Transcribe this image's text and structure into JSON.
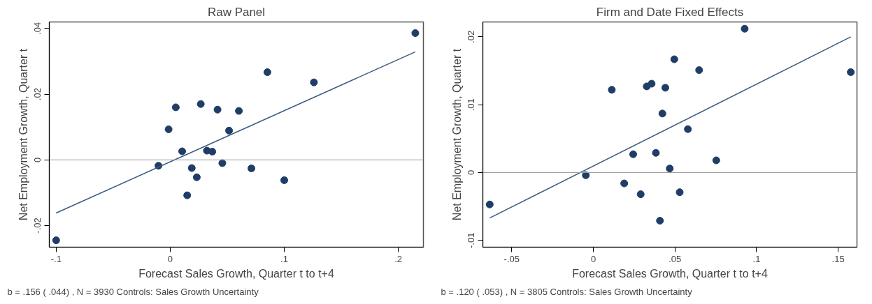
{
  "chart_data": [
    {
      "type": "scatter",
      "title": "Raw Panel",
      "xlabel": "Forecast Sales Growth, Quarter t to t+4",
      "ylabel": "Net Employment Growth, Quarter t",
      "annotations": [
        "b = .156 ( .044) , N = 3930  Controls: Sales Growth Uncertainty"
      ],
      "xlim": [
        -0.106,
        0.222
      ],
      "ylim": [
        -0.0266,
        0.042
      ],
      "xticks": [
        {
          "value": -0.1,
          "label": "-.1"
        },
        0,
        {
          "value": 0.1,
          "label": ".1"
        },
        {
          "value": 0.2,
          "label": ".2"
        }
      ],
      "yticks": [
        {
          "value": -0.02,
          "label": "-.02"
        },
        0,
        {
          "value": 0.02,
          "label": ".02"
        },
        {
          "value": 0.04,
          "label": ".04"
        }
      ],
      "grid": false,
      "ref_lines": [
        {
          "axis": "y",
          "value": 0,
          "label": null,
          "color": "#a0a0a0"
        }
      ],
      "series": [
        {
          "marker": "circle",
          "color": "#1f3d66",
          "x": [
            -0.1,
            -0.0103,
            -0.0014,
            0.0049,
            0.0105,
            0.0149,
            0.0189,
            0.0233,
            0.0268,
            0.0322,
            0.0369,
            0.0415,
            0.0457,
            0.0516,
            0.0602,
            0.0712,
            0.0852,
            0.1,
            0.126,
            0.2149
          ],
          "values": [
            -0.0245,
            -0.0018,
            0.0093,
            0.016,
            0.0026,
            -0.0108,
            -0.0025,
            -0.0053,
            0.017,
            0.0028,
            0.0025,
            0.0153,
            -0.001,
            0.0089,
            0.0149,
            -0.0026,
            0.0267,
            -0.0062,
            0.0236,
            0.0386
          ]
        },
        {
          "type": "line",
          "color": "#3a5a80",
          "x": [
            -0.1,
            0.2149
          ],
          "values": [
            -0.0162,
            0.0329
          ]
        }
      ]
    },
    {
      "type": "scatter",
      "title": "Firm and Date Fixed Effects",
      "xlabel": "Forecast Sales Growth, Quarter t to t+4",
      "ylabel": "Net Employment Growth, Quarter t",
      "annotations": [
        "b = .120 ( .053) , N = 3805  Controls: Sales Growth Uncertainty"
      ],
      "xlim": [
        -0.0677,
        0.1615
      ],
      "ylim": [
        -0.011,
        0.0222
      ],
      "xticks": [
        {
          "value": -0.05,
          "label": "-.05"
        },
        0,
        {
          "value": 0.05,
          "label": ".05"
        },
        {
          "value": 0.1,
          "label": ".1"
        },
        {
          "value": 0.15,
          "label": ".15"
        }
      ],
      "yticks": [
        {
          "value": -0.01,
          "label": "-.01"
        },
        0,
        {
          "value": 0.01,
          "label": ".01"
        },
        {
          "value": 0.02,
          "label": ".02"
        }
      ],
      "grid": false,
      "ref_lines": [
        {
          "axis": "y",
          "value": 0,
          "label": null,
          "color": "#a0a0a0"
        }
      ],
      "series": [
        {
          "marker": "circle",
          "color": "#1f3d66",
          "x": [
            -0.0635,
            -0.0046,
            0.0113,
            0.0189,
            0.0244,
            0.029,
            0.0327,
            0.0357,
            0.0383,
            0.0408,
            0.0423,
            0.0441,
            0.0468,
            0.0496,
            0.0529,
            0.0579,
            0.0648,
            0.0753,
            0.0927,
            0.1577
          ],
          "values": [
            -0.0047,
            -0.0004,
            0.0122,
            -0.0016,
            0.0027,
            -0.0032,
            0.0127,
            0.0131,
            0.0029,
            -0.0071,
            0.0087,
            0.0125,
            0.0006,
            0.0167,
            -0.0029,
            0.0064,
            0.0151,
            0.0018,
            0.0212,
            0.0148
          ]
        },
        {
          "type": "line",
          "color": "#3a5a80",
          "x": [
            -0.0635,
            0.1577
          ],
          "values": [
            -0.0067,
            0.02
          ]
        }
      ]
    }
  ]
}
